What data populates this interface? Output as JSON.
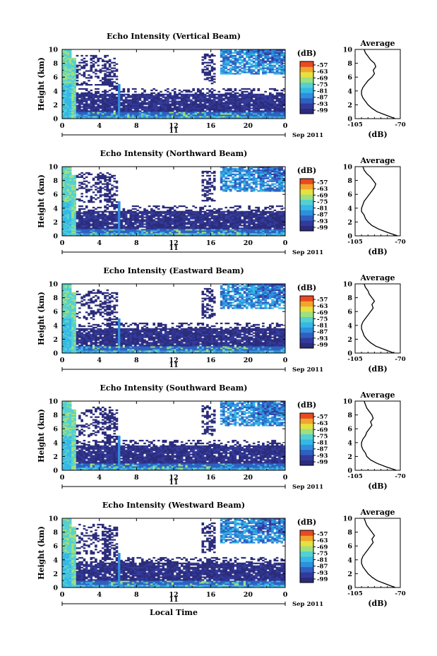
{
  "chart_data": [
    {
      "type": "heatmap",
      "title": "Echo Intensity (Vertical Beam)",
      "ylabel": "Height (km)",
      "xlabel": "",
      "ylim": [
        0,
        10
      ],
      "xlim": [
        0,
        24
      ],
      "xticks": [
        "0",
        "4",
        "8",
        "12",
        "16",
        "20",
        "0"
      ],
      "yticks": [
        "0",
        "2",
        "4",
        "6",
        "8",
        "10"
      ],
      "date_day": "11",
      "date_label": "Sep 2011",
      "colorbar": {
        "unit": "(dB)",
        "ticks": [
          "-57",
          "-63",
          "-69",
          "-75",
          "-81",
          "-87",
          "-93",
          "-99"
        ]
      },
      "profile": {
        "title": "Average",
        "xlabel": "(dB)",
        "xticks": [
          "-105",
          "-70"
        ],
        "xlim": [
          -105,
          -70
        ],
        "heights": [
          0,
          0.5,
          1,
          1.5,
          2,
          2.5,
          3,
          3.5,
          4,
          4.5,
          5,
          5.5,
          6,
          6.5,
          7,
          7.5,
          8,
          8.5,
          9,
          9.5,
          10
        ],
        "values": [
          -74,
          -81,
          -88,
          -92,
          -95,
          -97,
          -99,
          -100,
          -100,
          -99,
          -97,
          -95,
          -92,
          -90,
          -91,
          -89,
          -90,
          -93,
          -95,
          -97,
          -98
        ]
      }
    },
    {
      "type": "heatmap",
      "title": "Echo Intensity (Northward Beam)",
      "ylabel": "Height (km)",
      "xlabel": "",
      "ylim": [
        0,
        10
      ],
      "xlim": [
        0,
        24
      ],
      "xticks": [
        "0",
        "4",
        "8",
        "12",
        "16",
        "20",
        "0"
      ],
      "yticks": [
        "0",
        "2",
        "4",
        "6",
        "8",
        "10"
      ],
      "date_day": "11",
      "date_label": "Sep 2011",
      "colorbar": {
        "unit": "(dB)",
        "ticks": [
          "-57",
          "-63",
          "-69",
          "-75",
          "-81",
          "-87",
          "-93",
          "-99"
        ]
      },
      "profile": {
        "title": "Average",
        "xlabel": "(dB)",
        "xticks": [
          "-105",
          "-70"
        ],
        "xlim": [
          -105,
          -70
        ],
        "heights": [
          0,
          0.5,
          1,
          1.5,
          2,
          2.5,
          3,
          3.5,
          4,
          4.5,
          5,
          5.5,
          6,
          6.5,
          7,
          7.5,
          8,
          8.5,
          9,
          9.5,
          10
        ],
        "values": [
          -72,
          -80,
          -87,
          -92,
          -95,
          -97,
          -98,
          -100,
          -100,
          -99,
          -98,
          -96,
          -94,
          -92,
          -90,
          -89,
          -91,
          -93,
          -96,
          -98,
          -99
        ]
      }
    },
    {
      "type": "heatmap",
      "title": "Echo Intensity (Eastward Beam)",
      "ylabel": "Height (km)",
      "xlabel": "",
      "ylim": [
        0,
        10
      ],
      "xlim": [
        0,
        24
      ],
      "xticks": [
        "0",
        "4",
        "8",
        "12",
        "16",
        "20",
        "0"
      ],
      "yticks": [
        "0",
        "2",
        "4",
        "6",
        "8",
        "10"
      ],
      "date_day": "11",
      "date_label": "Sep 2011",
      "colorbar": {
        "unit": "(dB)",
        "ticks": [
          "-57",
          "-63",
          "-69",
          "-75",
          "-81",
          "-87",
          "-93",
          "-99"
        ]
      },
      "profile": {
        "title": "Average",
        "xlabel": "(dB)",
        "xticks": [
          "-105",
          "-70"
        ],
        "xlim": [
          -105,
          -70
        ],
        "heights": [
          0,
          0.5,
          1,
          1.5,
          2,
          2.5,
          3,
          3.5,
          4,
          4.5,
          5,
          5.5,
          6,
          6.5,
          7,
          7.5,
          8,
          8.5,
          9,
          9.5,
          10
        ],
        "values": [
          -75,
          -82,
          -89,
          -93,
          -96,
          -98,
          -99,
          -100,
          -100,
          -99,
          -97,
          -95,
          -93,
          -91,
          -92,
          -90,
          -92,
          -94,
          -95,
          -97,
          -98
        ]
      }
    },
    {
      "type": "heatmap",
      "title": "Echo Intensity (Southward Beam)",
      "ylabel": "Height (km)",
      "xlabel": "",
      "ylim": [
        0,
        10
      ],
      "xlim": [
        0,
        24
      ],
      "xticks": [
        "0",
        "4",
        "8",
        "12",
        "16",
        "20",
        "0"
      ],
      "yticks": [
        "0",
        "2",
        "4",
        "6",
        "8",
        "10"
      ],
      "date_day": "11",
      "date_label": "Sep 2011",
      "colorbar": {
        "unit": "(dB)",
        "ticks": [
          "-57",
          "-63",
          "-69",
          "-75",
          "-81",
          "-87",
          "-93",
          "-99"
        ]
      },
      "profile": {
        "title": "Average",
        "xlabel": "(dB)",
        "xticks": [
          "-105",
          "-70"
        ],
        "xlim": [
          -105,
          -70
        ],
        "heights": [
          0,
          0.5,
          1,
          1.5,
          2,
          2.5,
          3,
          3.5,
          4,
          4.5,
          5,
          5.5,
          6,
          6.5,
          7,
          7.5,
          8,
          8.5,
          9,
          9.5,
          10
        ],
        "values": [
          -73,
          -81,
          -88,
          -93,
          -96,
          -97,
          -99,
          -100,
          -100,
          -99,
          -97,
          -96,
          -94,
          -92,
          -93,
          -91,
          -92,
          -94,
          -96,
          -97,
          -98
        ]
      }
    },
    {
      "type": "heatmap",
      "title": "Echo Intensity (Westward Beam)",
      "ylabel": "Height (km)",
      "xlabel": "Local Time",
      "ylim": [
        0,
        10
      ],
      "xlim": [
        0,
        24
      ],
      "xticks": [
        "0",
        "4",
        "8",
        "12",
        "16",
        "20",
        "0"
      ],
      "yticks": [
        "0",
        "2",
        "4",
        "6",
        "8",
        "10"
      ],
      "date_day": "11",
      "date_label": "Sep 2011",
      "colorbar": {
        "unit": "(dB)",
        "ticks": [
          "-57",
          "-63",
          "-69",
          "-75",
          "-81",
          "-87",
          "-93",
          "-99"
        ]
      },
      "profile": {
        "title": "Average",
        "xlabel": "(dB)",
        "xticks": [
          "-105",
          "-70"
        ],
        "xlim": [
          -105,
          -70
        ],
        "heights": [
          0,
          0.5,
          1,
          1.5,
          2,
          2.5,
          3,
          3.5,
          4,
          4.5,
          5,
          5.5,
          6,
          6.5,
          7,
          7.5,
          8,
          8.5,
          9,
          9.5,
          10
        ],
        "values": [
          -74,
          -81,
          -88,
          -92,
          -95,
          -97,
          -99,
          -100,
          -100,
          -99,
          -97,
          -95,
          -93,
          -91,
          -92,
          -90,
          -92,
          -94,
          -96,
          -97,
          -98
        ]
      }
    }
  ]
}
